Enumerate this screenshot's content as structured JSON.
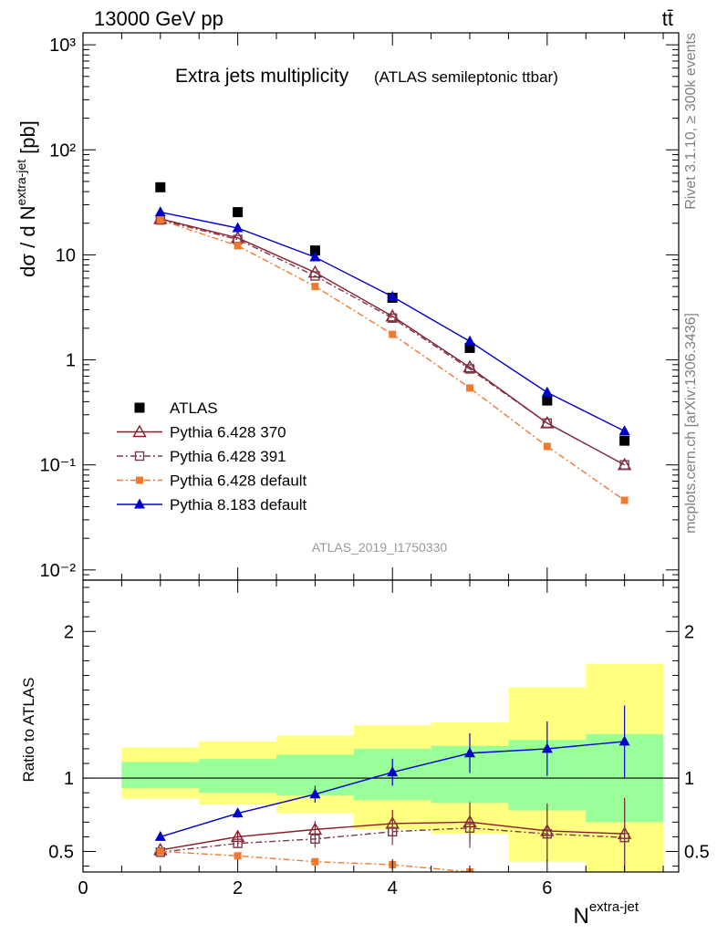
{
  "header": {
    "energy_label": "13000 GeV pp",
    "process_label": "tt̄",
    "side_note_top": "Rivet 3.1.10, ≥ 300k events",
    "side_note_bottom": "mcplots.cern.ch [arXiv:1306.3436]"
  },
  "chart_data": [
    {
      "type": "line",
      "title": "Extra jets multiplicity",
      "subtitle": "(ATLAS semileptonic ttbar)",
      "watermark": "ATLAS_2019_I1750330",
      "ylabel_main": "dσ / d N",
      "ylabel_sup": "extra-jet",
      "ylabel_unit": "[pb]",
      "yscale": "log",
      "ylim": [
        0.008,
        1300
      ],
      "xlim": [
        0,
        7.7
      ],
      "y_tick_labels": [
        "10⁻²",
        "10⁻¹",
        "1",
        "10",
        "10²",
        "10³"
      ],
      "legend_position": "lower-left",
      "x": [
        1,
        2,
        3,
        4,
        5,
        6,
        7
      ],
      "series": [
        {
          "name": "ATLAS",
          "color": "#000000",
          "marker": "filled-square",
          "line": "none",
          "values": [
            44,
            25.5,
            11,
            3.9,
            1.3,
            0.41,
            0.17
          ]
        },
        {
          "name": "Pythia 6.428 370",
          "color": "#8b1a2b",
          "marker": "open-triangle",
          "line": "solid",
          "values": [
            22,
            14.5,
            6.8,
            2.6,
            0.85,
            0.25,
            0.1
          ]
        },
        {
          "name": "Pythia 6.428 391",
          "color": "#7a3a4a",
          "marker": "open-square",
          "line": "dashdot",
          "values": [
            21.5,
            14,
            6.3,
            2.5,
            0.82,
            0.25,
            0.1
          ]
        },
        {
          "name": "Pythia 6.428 default",
          "color": "#f07830",
          "marker": "filled-small-square",
          "line": "dashdot",
          "values": [
            21.5,
            12.2,
            5,
            1.75,
            0.54,
            0.15,
            0.046
          ]
        },
        {
          "name": "Pythia 8.183 default",
          "color": "#0000cc",
          "marker": "filled-triangle",
          "line": "solid",
          "values": [
            25.5,
            18,
            9.5,
            4,
            1.5,
            0.49,
            0.21
          ]
        }
      ]
    },
    {
      "type": "line",
      "ylabel": "Ratio to ATLAS",
      "xlabel": "N",
      "xlabel_sup": "extra-jet",
      "xlim": [
        0,
        7.7
      ],
      "ylim": [
        0.36,
        2.35
      ],
      "y_tick_labels": [
        "0.5",
        "1",
        "2"
      ],
      "x_tick_labels": [
        "0",
        "2",
        "4",
        "6"
      ],
      "uncertainty_bands": {
        "bin_edges": [
          0.5,
          1.5,
          2.5,
          3.5,
          4.5,
          5.5,
          6.5,
          7.5
        ],
        "yellow": {
          "color": "#ffff80",
          "low": [
            0.86,
            0.82,
            0.76,
            0.65,
            0.62,
            0.43,
            0.3
          ],
          "high": [
            1.21,
            1.25,
            1.29,
            1.36,
            1.38,
            1.62,
            1.78
          ]
        },
        "green": {
          "color": "#99ff99",
          "low": [
            0.93,
            0.9,
            0.88,
            0.85,
            0.83,
            0.78,
            0.7
          ],
          "high": [
            1.11,
            1.13,
            1.16,
            1.2,
            1.22,
            1.26,
            1.3
          ]
        }
      },
      "x": [
        1,
        2,
        3,
        4,
        5,
        6,
        7
      ],
      "series": [
        {
          "name": "Pythia 6.428 370",
          "color": "#8b1a2b",
          "marker": "open-triangle",
          "line": "solid",
          "values": [
            0.51,
            0.6,
            0.65,
            0.69,
            0.7,
            0.64,
            0.62
          ]
        },
        {
          "name": "Pythia 6.428 391",
          "color": "#7a3a4a",
          "marker": "open-square",
          "line": "dashdot",
          "values": [
            0.495,
            0.555,
            0.585,
            0.635,
            0.66,
            0.62,
            0.595
          ]
        },
        {
          "name": "Pythia 6.428 default",
          "color": "#f07830",
          "marker": "filled-small-square",
          "line": "dashdot",
          "values": [
            0.5,
            0.47,
            0.43,
            0.41,
            0.36,
            0.33,
            0.3
          ]
        },
        {
          "name": "Pythia 8.183 default",
          "color": "#0000cc",
          "marker": "filled-triangle",
          "line": "solid",
          "values": [
            0.6,
            0.76,
            0.89,
            1.04,
            1.17,
            1.2,
            1.25
          ]
        }
      ]
    }
  ]
}
